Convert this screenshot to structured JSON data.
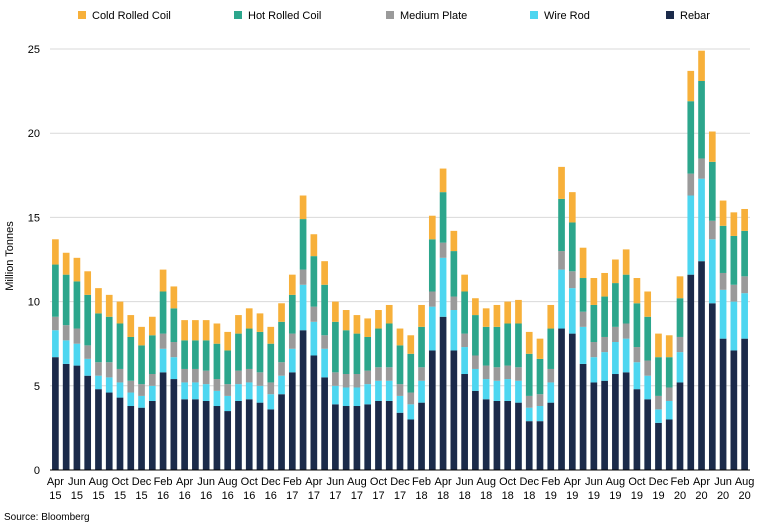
{
  "chart_data": {
    "type": "bar",
    "stacked": true,
    "ylabel": "Million Tonnes",
    "ylim": [
      0,
      25
    ],
    "yticks": [
      0,
      5,
      10,
      15,
      20,
      25
    ],
    "grid": true,
    "legend_position": "top",
    "categories": [
      "Apr 15",
      "May 15",
      "Jun 15",
      "Jul 15",
      "Aug 15",
      "Sep 15",
      "Oct 15",
      "Nov 15",
      "Dec 15",
      "Jan 16",
      "Feb 16",
      "Mar 16",
      "Apr 16",
      "May 16",
      "Jun 16",
      "Jul 16",
      "Aug 16",
      "Sep 16",
      "Oct 16",
      "Nov 16",
      "Dec 16",
      "Jan 17",
      "Feb 17",
      "Mar 17",
      "Apr 17",
      "May 17",
      "Jun 17",
      "Jul 17",
      "Aug 17",
      "Sep 17",
      "Oct 17",
      "Nov 17",
      "Dec 17",
      "Jan 18",
      "Feb 18",
      "Mar 18",
      "Apr 18",
      "May 18",
      "Jun 18",
      "Jul 18",
      "Aug 18",
      "Sep 18",
      "Oct 18",
      "Nov 18",
      "Dec 18",
      "Jan 19",
      "Feb 19",
      "Mar 19",
      "Apr 19",
      "May 19",
      "Jun 19",
      "Jul 19",
      "Aug 19",
      "Sep 19",
      "Oct 19",
      "Nov 19",
      "Dec 19",
      "Jan 20",
      "Feb 20",
      "Mar 20",
      "Apr 20",
      "May 20",
      "Jun 20",
      "Jul 20",
      "Aug 20"
    ],
    "x_tick_labels": [
      [
        "Apr",
        "15"
      ],
      [
        "Jun",
        "15"
      ],
      [
        "Aug",
        "15"
      ],
      [
        "Oct",
        "15"
      ],
      [
        "Dec",
        "15"
      ],
      [
        "Feb",
        "16"
      ],
      [
        "Apr",
        "16"
      ],
      [
        "Jun",
        "16"
      ],
      [
        "Aug",
        "16"
      ],
      [
        "Oct",
        "16"
      ],
      [
        "Dec",
        "16"
      ],
      [
        "Feb",
        "17"
      ],
      [
        "Apr",
        "17"
      ],
      [
        "Jun",
        "17"
      ],
      [
        "Aug",
        "17"
      ],
      [
        "Oct",
        "17"
      ],
      [
        "Dec",
        "17"
      ],
      [
        "Feb",
        "18"
      ],
      [
        "Apr",
        "18"
      ],
      [
        "Jun",
        "18"
      ],
      [
        "Aug",
        "18"
      ],
      [
        "Oct",
        "18"
      ],
      [
        "Dec",
        "18"
      ],
      [
        "Feb",
        "19"
      ],
      [
        "Apr",
        "19"
      ],
      [
        "Jun",
        "19"
      ],
      [
        "Aug",
        "19"
      ],
      [
        "Oct",
        "19"
      ],
      [
        "Dec",
        "19"
      ],
      [
        "Feb",
        "20"
      ],
      [
        "Apr",
        "20"
      ],
      [
        "Jun",
        "20"
      ],
      [
        "Aug",
        "20"
      ]
    ],
    "series": [
      {
        "name": "Rebar",
        "color": "#1b2a4a",
        "values": [
          6.7,
          6.3,
          6.2,
          5.6,
          4.8,
          4.6,
          4.3,
          3.8,
          3.7,
          4.1,
          5.8,
          5.4,
          4.2,
          4.2,
          4.1,
          3.8,
          3.5,
          4.1,
          4.2,
          4.0,
          3.6,
          4.5,
          5.8,
          8.3,
          6.8,
          5.5,
          3.9,
          3.8,
          3.8,
          3.9,
          4.1,
          4.1,
          3.4,
          3.0,
          4.0,
          7.1,
          9.1,
          7.1,
          5.7,
          4.7,
          4.2,
          4.1,
          4.1,
          4.0,
          2.9,
          2.9,
          4.0,
          8.4,
          8.1,
          6.3,
          5.2,
          5.3,
          5.7,
          5.8,
          4.8,
          4.2,
          2.8,
          3.0,
          5.2,
          11.6,
          12.4,
          9.9,
          7.8,
          7.1,
          7.8
        ]
      },
      {
        "name": "Wire Rod",
        "color": "#4dd6f0",
        "values": [
          1.6,
          1.4,
          1.3,
          1.0,
          0.8,
          0.9,
          0.9,
          0.8,
          0.7,
          0.9,
          1.4,
          1.3,
          1.0,
          1.0,
          1.0,
          0.9,
          0.9,
          1.0,
          1.0,
          1.0,
          0.9,
          1.1,
          1.4,
          2.7,
          2.0,
          1.7,
          1.1,
          1.1,
          1.1,
          1.2,
          1.2,
          1.2,
          1.0,
          0.9,
          1.3,
          2.6,
          3.5,
          2.4,
          1.6,
          1.3,
          1.2,
          1.2,
          1.3,
          1.3,
          0.8,
          0.9,
          1.2,
          3.5,
          2.7,
          2.2,
          1.5,
          1.7,
          1.9,
          2.0,
          1.6,
          1.4,
          0.8,
          1.1,
          1.8,
          4.7,
          4.9,
          3.8,
          2.9,
          2.9,
          2.7
        ]
      },
      {
        "name": "Medium Plate",
        "color": "#9a9a9a",
        "values": [
          0.8,
          0.9,
          0.9,
          0.8,
          0.8,
          0.9,
          0.8,
          0.7,
          0.7,
          0.7,
          0.9,
          0.9,
          0.8,
          0.8,
          0.8,
          0.7,
          0.7,
          0.8,
          0.8,
          0.8,
          0.7,
          0.8,
          0.9,
          0.9,
          0.9,
          0.8,
          0.8,
          0.8,
          0.8,
          0.8,
          0.8,
          0.8,
          0.7,
          0.7,
          0.8,
          0.9,
          0.9,
          0.8,
          0.8,
          0.8,
          0.8,
          0.8,
          0.8,
          0.8,
          0.7,
          0.7,
          0.8,
          1.1,
          1.0,
          0.9,
          0.9,
          0.9,
          0.9,
          0.9,
          0.9,
          0.9,
          0.8,
          0.8,
          0.9,
          1.3,
          1.2,
          1.1,
          1.0,
          1.0,
          1.0
        ]
      },
      {
        "name": "Hot Rolled Coil",
        "color": "#2ca68c",
        "values": [
          3.1,
          3.0,
          2.8,
          3.0,
          2.9,
          2.7,
          2.7,
          2.6,
          2.3,
          2.3,
          2.5,
          2.0,
          1.7,
          1.7,
          1.8,
          2.1,
          2.0,
          2.2,
          2.4,
          2.4,
          2.3,
          2.4,
          2.3,
          3.0,
          3.0,
          3.0,
          3.0,
          2.6,
          2.4,
          2.0,
          2.3,
          2.6,
          2.3,
          2.3,
          2.4,
          3.1,
          3.0,
          2.7,
          2.5,
          2.4,
          2.3,
          2.4,
          2.5,
          2.6,
          2.5,
          2.1,
          2.4,
          3.1,
          2.9,
          2.0,
          2.2,
          2.4,
          2.6,
          2.9,
          2.6,
          2.6,
          2.3,
          1.8,
          2.3,
          4.3,
          4.6,
          3.5,
          2.8,
          2.9,
          2.7
        ]
      },
      {
        "name": "Cold Rolled Coil",
        "color": "#f7b03a",
        "values": [
          1.5,
          1.3,
          1.4,
          1.4,
          1.5,
          1.3,
          1.3,
          1.3,
          1.1,
          1.1,
          1.3,
          1.3,
          1.2,
          1.2,
          1.2,
          1.2,
          1.1,
          1.1,
          1.2,
          1.1,
          1.0,
          1.1,
          1.2,
          1.4,
          1.3,
          1.4,
          1.2,
          1.2,
          1.1,
          1.1,
          1.1,
          1.1,
          1.0,
          1.1,
          1.3,
          1.4,
          1.4,
          1.2,
          1.0,
          1.0,
          1.1,
          1.3,
          1.3,
          1.4,
          1.3,
          1.2,
          1.4,
          1.9,
          1.8,
          1.8,
          1.6,
          1.4,
          1.4,
          1.5,
          1.5,
          1.5,
          1.4,
          1.3,
          1.3,
          1.8,
          1.8,
          1.8,
          1.5,
          1.4,
          1.3
        ]
      }
    ],
    "legend_order": [
      "Cold Rolled Coil",
      "Hot Rolled Coil",
      "Medium Plate",
      "Wire Rod",
      "Rebar"
    ]
  },
  "source_note": "Source: Bloomberg"
}
